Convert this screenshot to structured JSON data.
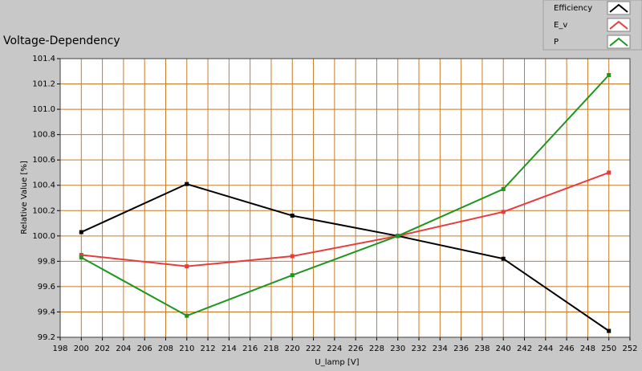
{
  "chart_data": {
    "type": "line",
    "title": "Voltage-Dependency",
    "x_label": "U_lamp [V]",
    "y_label": "Relative Value [%]",
    "x": [
      200,
      210,
      220,
      230,
      240,
      250
    ],
    "series": [
      {
        "name": "Efficiency",
        "color": "#000000",
        "values": [
          100.03,
          100.41,
          100.16,
          100.0,
          99.82,
          99.25
        ]
      },
      {
        "name": "E_v",
        "color": "#e83c3c",
        "values": [
          99.85,
          99.76,
          99.84,
          100.0,
          100.19,
          100.5
        ]
      },
      {
        "name": "P",
        "color": "#1e961e",
        "values": [
          99.83,
          99.37,
          99.69,
          100.0,
          100.37,
          101.27
        ]
      }
    ],
    "xlim": [
      198,
      252
    ],
    "xticks": [
      198,
      200,
      202,
      204,
      206,
      208,
      210,
      212,
      214,
      216,
      218,
      220,
      222,
      224,
      226,
      228,
      230,
      232,
      234,
      236,
      238,
      240,
      242,
      244,
      246,
      248,
      250,
      252
    ],
    "ylim": [
      99.2,
      101.4
    ],
    "yticks": [
      99.2,
      99.4,
      99.6,
      99.8,
      {
        "value": 100,
        "label": "100.0"
      },
      100.2,
      100.4,
      100.6,
      100.8,
      {
        "value": 101,
        "label": "101.0"
      },
      101.2,
      101.4
    ],
    "grid": true,
    "grid_color": "#c87a28",
    "legend_position": "top-right"
  }
}
